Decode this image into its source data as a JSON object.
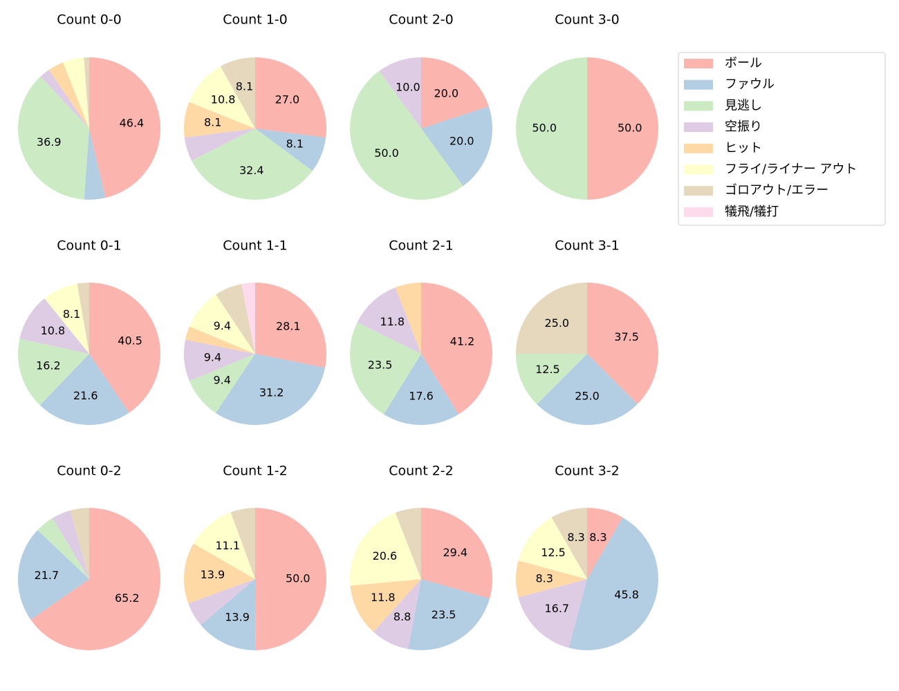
{
  "legend": {
    "labels": [
      "ボール",
      "ファウル",
      "見逃し",
      "空振り",
      "ヒット",
      "フライ/ライナー アウト",
      "ゴロアウト/エラー",
      "犠飛/犠打"
    ],
    "colors": [
      "#fbb4ae",
      "#b3cde3",
      "#ccebc5",
      "#decbe4",
      "#fed9a6",
      "#ffffcc",
      "#e5d8bd",
      "#fddaec"
    ]
  },
  "chart_data": [
    {
      "type": "pie",
      "title": "Count 0-0",
      "values": [
        46.4,
        4.8,
        36.9,
        2.4,
        3.6,
        4.8,
        1.2,
        0
      ],
      "value_labels": [
        "46.4",
        null,
        "36.9",
        null,
        null,
        null,
        null,
        null
      ]
    },
    {
      "type": "pie",
      "title": "Count 1-0",
      "values": [
        27.0,
        8.1,
        32.4,
        5.4,
        8.1,
        10.8,
        8.1,
        0
      ],
      "value_labels": [
        "27.0",
        "8.1",
        "32.4",
        null,
        "8.1",
        "10.8",
        "8.1",
        null
      ]
    },
    {
      "type": "pie",
      "title": "Count 2-0",
      "values": [
        20,
        20,
        50,
        10,
        0,
        0,
        0,
        0
      ],
      "value_labels": [
        "20.0",
        "20.0",
        "50.0",
        "10.0",
        null,
        null,
        null,
        null
      ]
    },
    {
      "type": "pie",
      "title": "Count 3-0",
      "values": [
        50,
        0,
        50,
        0,
        0,
        0,
        0,
        0
      ],
      "value_labels": [
        "50.0",
        null,
        "50.0",
        null,
        null,
        null,
        null,
        null
      ]
    },
    {
      "type": "pie",
      "title": "Count 0-1",
      "values": [
        40.5,
        21.6,
        16.2,
        10.8,
        0,
        8.1,
        2.7,
        0
      ],
      "value_labels": [
        "40.5",
        "21.6",
        "16.2",
        "10.8",
        null,
        "8.1",
        null,
        null
      ]
    },
    {
      "type": "pie",
      "title": "Count 1-1",
      "values": [
        28.1,
        31.2,
        9.4,
        9.4,
        3.1,
        9.4,
        6.2,
        3.1
      ],
      "value_labels": [
        "28.1",
        "31.2",
        "9.4",
        "9.4",
        null,
        "9.4",
        null,
        null
      ]
    },
    {
      "type": "pie",
      "title": "Count 2-1",
      "values": [
        41.2,
        17.6,
        23.5,
        11.8,
        5.9,
        0,
        0,
        0
      ],
      "value_labels": [
        "41.2",
        "17.6",
        "23.5",
        "11.8",
        null,
        null,
        null,
        null
      ]
    },
    {
      "type": "pie",
      "title": "Count 3-1",
      "values": [
        37.5,
        25.0,
        12.5,
        0,
        0,
        0,
        25.0,
        0
      ],
      "value_labels": [
        "37.5",
        "25.0",
        "12.5",
        null,
        null,
        null,
        "25.0",
        null
      ]
    },
    {
      "type": "pie",
      "title": "Count 0-2",
      "values": [
        65.2,
        21.7,
        4.3,
        4.3,
        0,
        0,
        4.3,
        0
      ],
      "value_labels": [
        "65.2",
        "21.7",
        null,
        null,
        null,
        null,
        null,
        null
      ]
    },
    {
      "type": "pie",
      "title": "Count 1-2",
      "values": [
        50.0,
        13.9,
        0,
        5.6,
        13.9,
        11.1,
        5.6,
        0
      ],
      "value_labels": [
        "50.0",
        "13.9",
        null,
        null,
        "13.9",
        "11.1",
        null,
        null
      ]
    },
    {
      "type": "pie",
      "title": "Count 2-2",
      "values": [
        29.4,
        23.5,
        0,
        8.8,
        11.8,
        20.6,
        5.9,
        0
      ],
      "value_labels": [
        "29.4",
        "23.5",
        null,
        "8.8",
        "11.8",
        "20.6",
        null,
        null
      ]
    },
    {
      "type": "pie",
      "title": "Count 3-2",
      "values": [
        8.3,
        45.8,
        0,
        16.7,
        8.3,
        12.5,
        8.3,
        0
      ],
      "value_labels": [
        "8.3",
        "45.8",
        null,
        "16.7",
        "8.3",
        "12.5",
        "8.3",
        null
      ]
    }
  ]
}
